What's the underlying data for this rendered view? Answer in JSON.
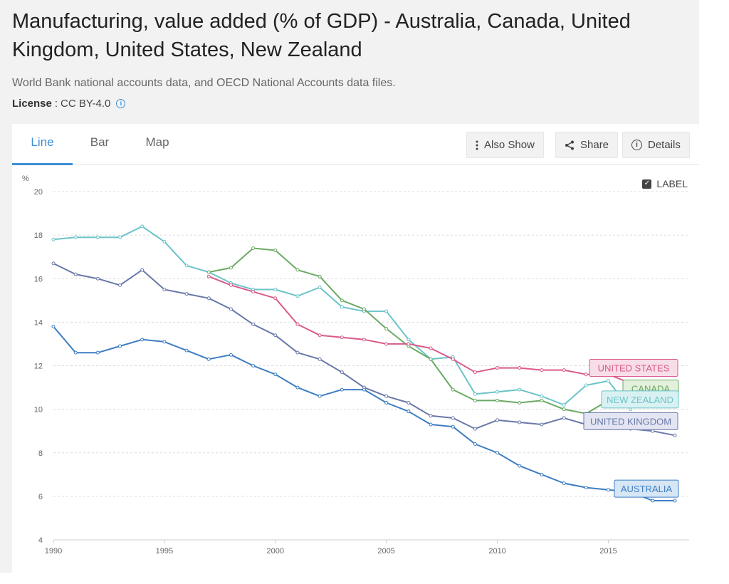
{
  "page": {
    "title": "Manufacturing, value added (% of GDP) - Australia, Canada, United Kingdom, United States, New Zealand",
    "source": "World Bank national accounts data, and OECD National Accounts data files.",
    "license_label": "License",
    "license_value": "CC BY-4.0",
    "info_icon": "info-circle-icon"
  },
  "tabs": [
    {
      "label": "Line",
      "active": true
    },
    {
      "label": "Bar",
      "active": false
    },
    {
      "label": "Map",
      "active": false
    }
  ],
  "toolbar": {
    "also_show": {
      "label": "Also Show",
      "icon": "vertical-dots-icon"
    },
    "share": {
      "label": "Share",
      "icon": "share-icon"
    },
    "details": {
      "label": "Details",
      "icon": "info-circle-icon"
    }
  },
  "label_toggle": {
    "label": "LABEL",
    "checked": true
  },
  "chart_data": {
    "type": "line",
    "ylabel": "%",
    "xlim": [
      1990,
      2018
    ],
    "ylim": [
      4,
      20
    ],
    "yticks": [
      4,
      6,
      8,
      10,
      12,
      14,
      16,
      18,
      20
    ],
    "xticks": [
      1990,
      1995,
      2000,
      2005,
      2010,
      2015
    ],
    "grid": true,
    "series": [
      {
        "name": "NEW ZEALAND",
        "color": "#6cc3c9",
        "label_bg": "#d9f1f2",
        "x": [
          1990,
          1991,
          1992,
          1993,
          1994,
          1995,
          1996,
          1997,
          1998,
          1999,
          2000,
          2001,
          2002,
          2003,
          2004,
          2005,
          2006,
          2007,
          2008,
          2009,
          2010,
          2011,
          2012,
          2013,
          2014,
          2015,
          2016
        ],
        "values": [
          17.8,
          17.9,
          17.9,
          17.9,
          18.4,
          17.7,
          16.6,
          16.3,
          15.8,
          15.5,
          15.5,
          15.2,
          15.6,
          14.7,
          14.5,
          14.5,
          13.2,
          12.3,
          12.4,
          10.7,
          10.8,
          10.9,
          10.6,
          10.2,
          11.1,
          11.3,
          10.0
        ]
      },
      {
        "name": "CANADA",
        "color": "#6aaa64",
        "label_bg": "#e3f0dc",
        "x": [
          1997,
          1998,
          1999,
          2000,
          2001,
          2002,
          2003,
          2004,
          2005,
          2006,
          2007,
          2008,
          2009,
          2010,
          2011,
          2012,
          2013,
          2014,
          2015,
          2016
        ],
        "values": [
          16.3,
          16.5,
          17.4,
          17.3,
          16.4,
          16.1,
          15.0,
          14.6,
          13.7,
          12.9,
          12.3,
          10.9,
          10.4,
          10.4,
          10.3,
          10.4,
          10.0,
          9.8,
          10.4,
          10.7
        ]
      },
      {
        "name": "UNITED STATES",
        "color": "#d95b8b",
        "label_bg": "#f7dde7",
        "x": [
          1997,
          1998,
          1999,
          2000,
          2001,
          2002,
          2003,
          2004,
          2005,
          2006,
          2007,
          2008,
          2009,
          2010,
          2011,
          2012,
          2013,
          2014,
          2015,
          2016
        ],
        "values": [
          16.1,
          15.7,
          15.4,
          15.1,
          13.9,
          13.4,
          13.3,
          13.2,
          13.0,
          13.0,
          12.8,
          12.3,
          11.7,
          11.9,
          11.9,
          11.8,
          11.8,
          11.6,
          11.6,
          11.2
        ]
      },
      {
        "name": "UNITED KINGDOM",
        "color": "#6a78a8",
        "label_bg": "#e3e5f2",
        "x": [
          1990,
          1991,
          1992,
          1993,
          1994,
          1995,
          1996,
          1997,
          1998,
          1999,
          2000,
          2001,
          2002,
          2003,
          2004,
          2005,
          2006,
          2007,
          2008,
          2009,
          2010,
          2011,
          2012,
          2013,
          2014,
          2015,
          2016,
          2017,
          2018
        ],
        "values": [
          16.7,
          16.2,
          16.0,
          15.7,
          16.4,
          15.5,
          15.3,
          15.1,
          14.6,
          13.9,
          13.4,
          12.6,
          12.3,
          11.7,
          11.0,
          10.6,
          10.3,
          9.7,
          9.6,
          9.1,
          9.5,
          9.4,
          9.3,
          9.6,
          9.3,
          9.2,
          9.1,
          9.0,
          8.8
        ]
      },
      {
        "name": "AUSTRALIA",
        "color": "#3d7dc2",
        "label_bg": "#d6e6f5",
        "x": [
          1990,
          1991,
          1992,
          1993,
          1994,
          1995,
          1996,
          1997,
          1998,
          1999,
          2000,
          2001,
          2002,
          2003,
          2004,
          2005,
          2006,
          2007,
          2008,
          2009,
          2010,
          2011,
          2012,
          2013,
          2014,
          2015,
          2016,
          2017,
          2018
        ],
        "values": [
          13.8,
          12.6,
          12.6,
          12.9,
          13.2,
          13.1,
          12.7,
          12.3,
          12.5,
          12.0,
          11.6,
          11.0,
          10.6,
          10.9,
          10.9,
          10.3,
          9.9,
          9.3,
          9.2,
          8.4,
          8.0,
          7.4,
          7.0,
          6.6,
          6.4,
          6.3,
          6.2,
          5.8,
          5.8
        ]
      }
    ],
    "label_order": [
      "UNITED STATES",
      "CANADA",
      "NEW ZEALAND",
      "UNITED KINGDOM",
      "AUSTRALIA"
    ],
    "label_values": {
      "UNITED STATES": 11.9,
      "CANADA": 10.95,
      "NEW ZEALAND": 10.45,
      "UNITED KINGDOM": 9.45,
      "AUSTRALIA": 6.35
    }
  }
}
